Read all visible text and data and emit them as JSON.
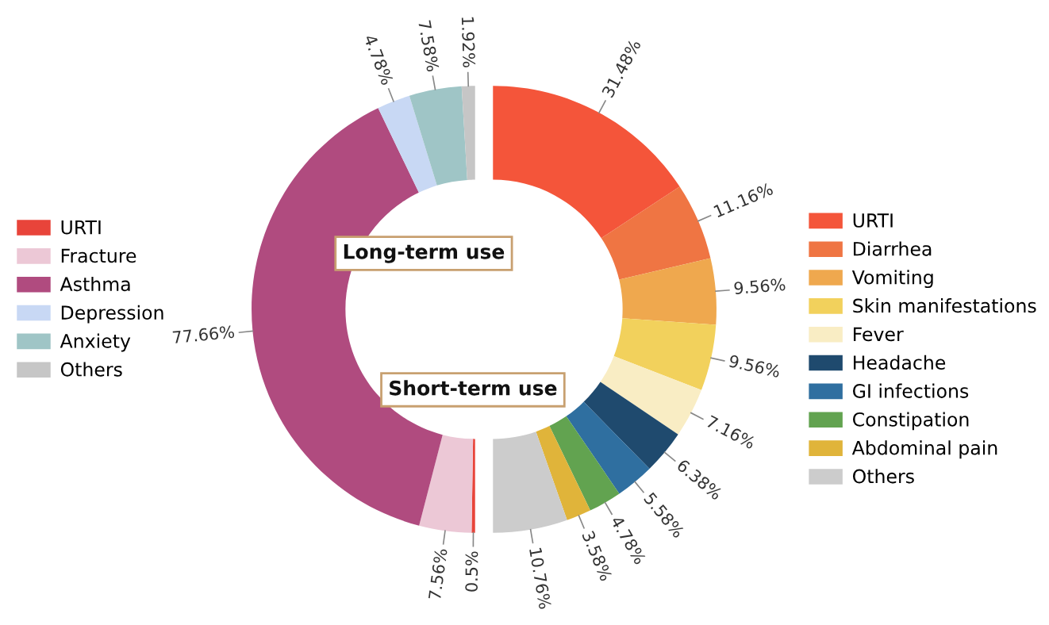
{
  "chart_data": {
    "type": "donut",
    "legend": "right",
    "annotations": [
      "Short-term use",
      "Long-term use"
    ],
    "categories": [
      "URTI",
      "Diarrhea",
      "Vomiting",
      "Skin manifestations",
      "Fever",
      "Headache",
      "GI infections",
      "Constipation",
      "Abdominal pain",
      "Others",
      "URTI",
      "Fracture",
      "Asthma",
      "Depression",
      "Anxiety",
      "Others"
    ],
    "values": [
      31.48,
      11.16,
      9.56,
      9.56,
      7.16,
      6.38,
      5.58,
      4.78,
      3.58,
      10.76,
      0.5,
      7.56,
      77.66,
      4.78,
      7.58,
      1.92
    ],
    "value_labels": [
      "31.48%",
      "11.16%",
      "9.56%",
      "9.56%",
      "7.16%",
      "6.38%",
      "5.58%",
      "4.78%",
      "3.58%",
      "10.76%",
      "0.5%",
      "7.56%",
      "77.66%",
      "4.78%",
      "7.58%",
      "1.92%"
    ],
    "colors": [
      "#f4553a",
      "#ef7543",
      "#efa84e",
      "#f2d15c",
      "#f9edc4",
      "#1f4a6e",
      "#2f6fa0",
      "#62a350",
      "#e0b43a",
      "#cccccc",
      "#e8443a",
      "#ecc8d6",
      "#b04b7f",
      "#c8d8f4",
      "#9fc5c6",
      "#c6c6c6"
    ]
  }
}
